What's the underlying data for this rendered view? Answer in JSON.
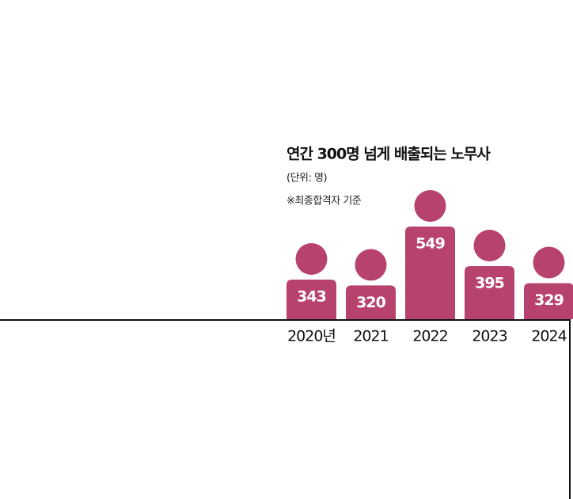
{
  "chart_data": {
    "type": "pictogram",
    "title": "연간 300명 넘게 배출되는 노무사",
    "subtitle": "(단위: 명)",
    "note": "※최종합격자 기준",
    "categories": [
      "2020년",
      "2021",
      "2022",
      "2023",
      "2024"
    ],
    "values": [
      343,
      320,
      549,
      395,
      329
    ],
    "color": "#b8426e",
    "ylim": [
      189,
      549
    ]
  }
}
